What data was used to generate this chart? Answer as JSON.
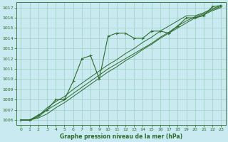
{
  "background_color": "#c8eaf0",
  "grid_color": "#9ecfbe",
  "line_color": "#2d6a2d",
  "xlabel": "Graphe pression niveau de la mer (hPa)",
  "xlim": [
    -0.5,
    23.5
  ],
  "ylim": [
    1005.5,
    1017.5
  ],
  "yticks": [
    1006,
    1007,
    1008,
    1009,
    1010,
    1011,
    1012,
    1013,
    1014,
    1015,
    1016,
    1017
  ],
  "xticks": [
    0,
    1,
    2,
    3,
    4,
    5,
    6,
    7,
    8,
    9,
    10,
    11,
    12,
    13,
    14,
    15,
    16,
    17,
    18,
    19,
    20,
    21,
    22,
    23
  ],
  "series_marker": [
    1006.0,
    1006.0,
    1006.5,
    1007.0,
    1008.0,
    1008.0,
    1009.8,
    1012.0,
    1012.3,
    1010.0,
    1014.2,
    1014.5,
    1014.5,
    1014.0,
    1014.0,
    1014.7,
    1014.7,
    1014.5,
    1015.2,
    1016.0,
    1016.0,
    1016.2,
    1017.1,
    1017.2
  ],
  "series_line1": [
    1006.0,
    1006.0,
    1006.2,
    1006.6,
    1007.2,
    1007.7,
    1008.3,
    1008.9,
    1009.5,
    1010.1,
    1010.7,
    1011.2,
    1011.8,
    1012.3,
    1012.9,
    1013.4,
    1014.0,
    1014.5,
    1015.0,
    1015.5,
    1016.0,
    1016.3,
    1016.7,
    1017.0
  ],
  "series_line2": [
    1006.0,
    1006.0,
    1006.3,
    1007.0,
    1007.5,
    1008.0,
    1008.6,
    1009.2,
    1009.8,
    1010.4,
    1011.0,
    1011.5,
    1012.0,
    1012.5,
    1013.0,
    1013.5,
    1014.1,
    1014.6,
    1015.2,
    1015.7,
    1016.1,
    1016.4,
    1016.8,
    1017.1
  ],
  "series_line3": [
    1006.0,
    1006.0,
    1006.4,
    1007.2,
    1007.8,
    1008.3,
    1009.0,
    1009.6,
    1010.2,
    1010.8,
    1011.4,
    1011.9,
    1012.5,
    1013.0,
    1013.6,
    1014.1,
    1014.7,
    1015.2,
    1015.7,
    1016.2,
    1016.2,
    1016.5,
    1016.9,
    1017.2
  ]
}
